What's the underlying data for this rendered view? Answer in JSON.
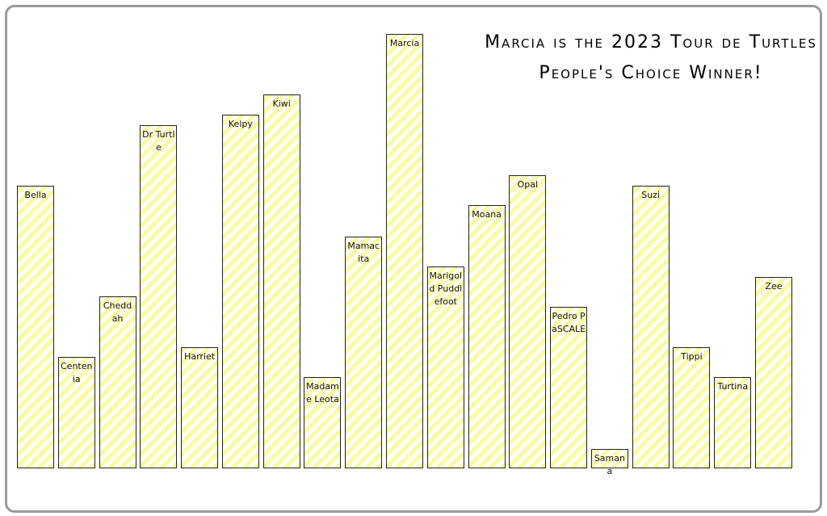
{
  "chart_data": {
    "type": "bar",
    "title": "Marcia is the 2023 Tour de Turtles People's Choice Winner!",
    "categories": [
      "Bella",
      "Centenia",
      "Cheddah",
      "Dr Turtle",
      "Harriet",
      "Kelpy",
      "Kiwi",
      "Madame Leota",
      "Mamacita",
      "Marcia",
      "Marigold Puddlefoot",
      "Moana",
      "Opal",
      "Pedro PaSCALE",
      "Samana",
      "Suzi",
      "Tippi",
      "Turtina",
      "Zee"
    ],
    "values": [
      350,
      138,
      213,
      425,
      150,
      438,
      463,
      113,
      287,
      538,
      250,
      326,
      363,
      200,
      24,
      350,
      150,
      113,
      237
    ],
    "color": "#fbfb9c",
    "ylim": [
      0,
      560
    ]
  }
}
